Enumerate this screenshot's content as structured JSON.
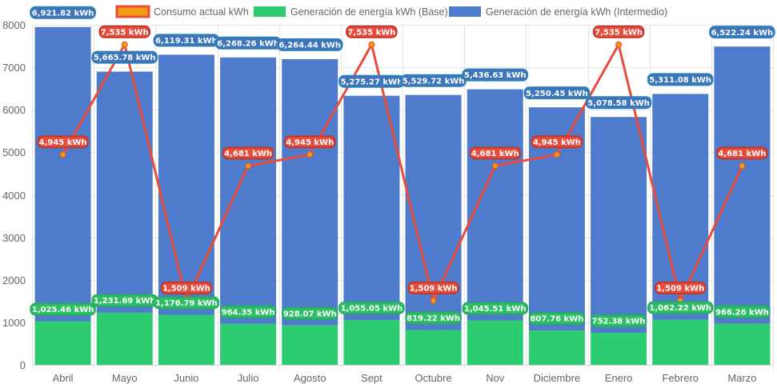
{
  "chart_data": {
    "type": "bar",
    "stacked": true,
    "categories": [
      "Abril",
      "Mayo",
      "Junio",
      "Julio",
      "Agosto",
      "Sept",
      "Octubre",
      "Nov",
      "Diciembre",
      "Enero",
      "Febrero",
      "Marzo"
    ],
    "ylim": [
      0,
      8000
    ],
    "yticks": [
      0,
      1000,
      2000,
      3000,
      4000,
      5000,
      6000,
      7000,
      8000
    ],
    "grid": true,
    "legend_position": "top",
    "unit_suffix": " kWh",
    "series": [
      {
        "name": "Consumo actual kWh",
        "kind": "line",
        "color": "#e74c3c",
        "point_color": "#f39c12",
        "values": [
          4945,
          7535,
          1509,
          4681,
          4945,
          7535,
          1509,
          4681,
          4945,
          7535,
          1509,
          4681
        ],
        "labels": [
          "4,945",
          "7,535",
          "1,509",
          "4,681",
          "4,945",
          "7,535",
          "1,509",
          "4,681",
          "4,945",
          "7,535",
          "1,509",
          "4,681"
        ]
      },
      {
        "name": "Generación de energía kWh (Base)",
        "kind": "bar",
        "color": "#2ecc71",
        "label_border": "#27ae60",
        "values": [
          1025.46,
          1231.69,
          1176.79,
          964.35,
          928.07,
          1055.05,
          819.22,
          1045.51,
          807.76,
          752.38,
          1062.22,
          966.26
        ],
        "labels": [
          "1,025.46",
          "1,231.69",
          "1,176.79",
          "964.35",
          "928.07",
          "1,055.05",
          "819.22",
          "1,045.51",
          "807.76",
          "752.38",
          "1,062.22",
          "966.26"
        ]
      },
      {
        "name": "Generación de energía kWh (Intermedio)",
        "kind": "bar",
        "color": "#4e7bcc",
        "label_border": "#2f80b6",
        "values": [
          6921.82,
          5665.78,
          6119.31,
          6268.26,
          6264.44,
          5275.27,
          5529.72,
          5436.63,
          5250.45,
          5078.58,
          5311.08,
          6522.24
        ],
        "labels": [
          "6,921.82",
          "5,665.78",
          "6,119.31",
          "6,268.26",
          "6,264.44",
          "5,275.27",
          "5,529.72",
          "5,436.63",
          "5,250.45",
          "5,078.58",
          "5,311.08",
          "6,522.24"
        ]
      }
    ]
  }
}
